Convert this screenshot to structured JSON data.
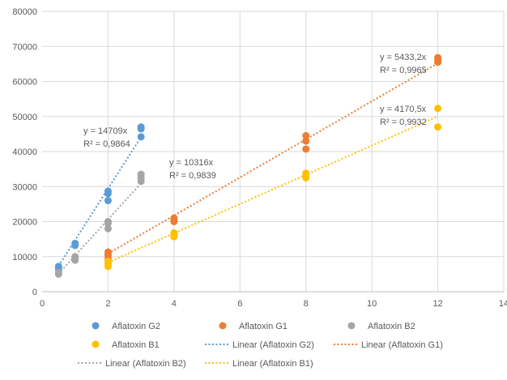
{
  "chart_data": {
    "type": "scatter",
    "x_ticks": [
      "0",
      "2",
      "4",
      "6",
      "8",
      "10",
      "12",
      "14"
    ],
    "y_ticks": [
      "0",
      "10000",
      "20000",
      "30000",
      "40000",
      "50000",
      "60000",
      "70000",
      "80000"
    ],
    "xlim": [
      0,
      14
    ],
    "ylim": [
      0,
      80000
    ],
    "grid": "vertical and horizontal",
    "legend_position": "bottom",
    "series": [
      {
        "name": "Aflatoxin G2",
        "color": "#5B9BD5",
        "points": [
          [
            0.5,
            6500
          ],
          [
            0.5,
            7200
          ],
          [
            1,
            13200
          ],
          [
            1,
            13800
          ],
          [
            2,
            26000
          ],
          [
            2,
            28000
          ],
          [
            2,
            28700
          ],
          [
            3,
            44200
          ],
          [
            3,
            46500
          ],
          [
            3,
            47000
          ]
        ]
      },
      {
        "name": "Aflatoxin G1",
        "color": "#ED7D31",
        "points": [
          [
            2,
            9500
          ],
          [
            2,
            10500
          ],
          [
            2,
            11300
          ],
          [
            4,
            20000
          ],
          [
            4,
            20500
          ],
          [
            4,
            21000
          ],
          [
            8,
            40700
          ],
          [
            8,
            43000
          ],
          [
            8,
            44500
          ],
          [
            12,
            65500
          ],
          [
            12,
            66200
          ],
          [
            12,
            66800
          ]
        ]
      },
      {
        "name": "Aflatoxin B2",
        "color": "#A5A5A5",
        "points": [
          [
            0.5,
            5000
          ],
          [
            0.5,
            5500
          ],
          [
            1,
            9000
          ],
          [
            1,
            9700
          ],
          [
            1,
            10000
          ],
          [
            2,
            18000
          ],
          [
            2,
            19500
          ],
          [
            2,
            20000
          ],
          [
            3,
            31500
          ],
          [
            3,
            32500
          ],
          [
            3,
            33500
          ]
        ]
      },
      {
        "name": "Aflatoxin B1",
        "color": "#FFC000",
        "points": [
          [
            2,
            7200
          ],
          [
            2,
            8000
          ],
          [
            2,
            8700
          ],
          [
            4,
            15700
          ],
          [
            4,
            16300
          ],
          [
            4,
            16800
          ],
          [
            8,
            32500
          ],
          [
            8,
            33200
          ],
          [
            8,
            33800
          ],
          [
            12,
            47000
          ],
          [
            12,
            52300
          ]
        ]
      }
    ],
    "trendlines": [
      {
        "name": "Linear (Aflatoxin G2)",
        "color": "#5B9BD5",
        "slope": 14709,
        "x_range": [
          0.5,
          3
        ],
        "equation": "y = 14709x",
        "r2": "R² = 0,9864"
      },
      {
        "name": "Linear (Aflatoxin G1)",
        "color": "#ED7D31",
        "slope": 5433.2,
        "x_range": [
          2,
          12
        ],
        "equation": "y = 5433,2x",
        "r2": "R² = 0,9965"
      },
      {
        "name": "Linear (Aflatoxin B2)",
        "color": "#A5A5A5",
        "slope": 10316,
        "x_range": [
          0.5,
          3
        ],
        "equation": "y = 10316x",
        "r2": "R² = 0,9839"
      },
      {
        "name": "Linear (Aflatoxin B1)",
        "color": "#FFC000",
        "slope": 4170.5,
        "x_range": [
          2,
          12
        ],
        "equation": "y = 4170,5x",
        "r2": "R² = 0,9932"
      }
    ],
    "legend": [
      {
        "label": "Aflatoxin G2",
        "kind": "marker",
        "color": "#5B9BD5"
      },
      {
        "label": "Aflatoxin G1",
        "kind": "marker",
        "color": "#ED7D31"
      },
      {
        "label": "Aflatoxin B2",
        "kind": "marker",
        "color": "#A5A5A5"
      },
      {
        "label": "Aflatoxin B1",
        "kind": "marker",
        "color": "#FFC000"
      },
      {
        "label": "Linear (Aflatoxin G2)",
        "kind": "line",
        "color": "#5B9BD5"
      },
      {
        "label": "Linear (Aflatoxin G1)",
        "kind": "line",
        "color": "#ED7D31"
      },
      {
        "label": "Linear (Aflatoxin B2)",
        "kind": "line",
        "color": "#A5A5A5"
      },
      {
        "label": "Linear (Aflatoxin B1)",
        "kind": "line",
        "color": "#FFC000"
      }
    ]
  }
}
